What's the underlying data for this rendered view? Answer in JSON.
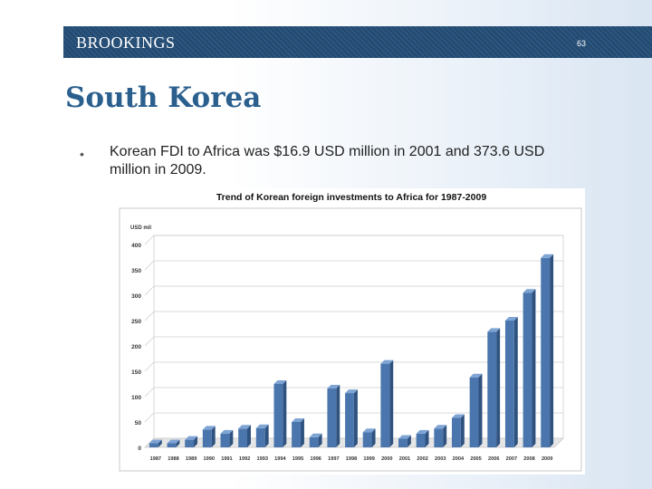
{
  "header": {
    "brand": "BROOKINGS",
    "page_number": "63"
  },
  "slide": {
    "title": "South Korea",
    "bullet": "Korean FDI to Africa was $16.9 USD million in 2001 and 373.6 USD million in 2009."
  },
  "colors": {
    "bar": "#4a76ad",
    "bar_top": "#7ea4d4",
    "bar_side": "#2f527f",
    "title": "#2b5f8e",
    "header": "#23496e"
  },
  "chart_data": {
    "type": "bar",
    "title": "Trend of Korean foreign investments to Africa for 1987-2009",
    "ylabel": "USD mil",
    "ylim": [
      0,
      400
    ],
    "yticks": [
      0,
      50,
      100,
      150,
      200,
      250,
      300,
      350,
      400
    ],
    "grid": true,
    "categories": [
      "1987",
      "1988",
      "1989",
      "1990",
      "1991",
      "1992",
      "1993",
      "1994",
      "1995",
      "1996",
      "1997",
      "1998",
      "1999",
      "2000",
      "2001",
      "2002",
      "2003",
      "2004",
      "2005",
      "2006",
      "2007",
      "2008",
      "2009"
    ],
    "values": [
      8,
      8,
      15,
      35,
      27,
      37,
      38,
      125,
      50,
      20,
      116,
      107,
      30,
      165,
      17,
      27,
      37,
      58,
      138,
      228,
      250,
      305,
      373.6
    ]
  }
}
